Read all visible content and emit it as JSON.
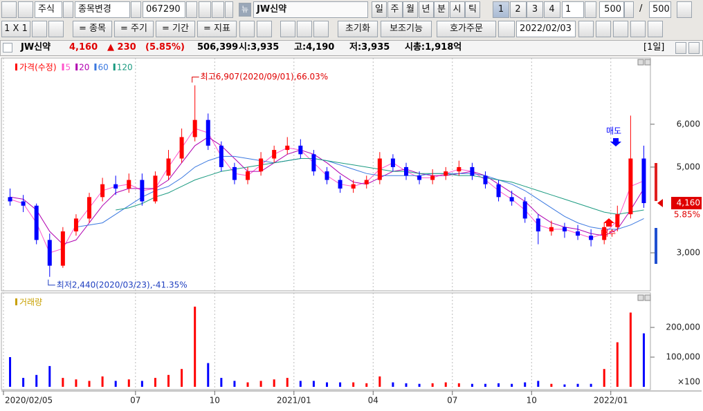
{
  "toolbar": {
    "row1": {
      "market": "주식",
      "change": "종목변경",
      "code": "067290",
      "new": "뉴",
      "name": "JW신약",
      "periods": [
        "일",
        "주",
        "월",
        "년",
        "분",
        "시",
        "틱"
      ],
      "counts": [
        "1",
        "2",
        "3",
        "4"
      ],
      "unit": "1",
      "view": "500",
      "sep": "/",
      "total": "500"
    },
    "row2": {
      "layout": "1 X 1",
      "buttons": [
        "= 종목",
        "= 주기",
        "= 기간",
        "= 지표"
      ],
      "reset": "초기화",
      "aux": "보조기능",
      "order": "호가주문",
      "date": "2022/02/03"
    }
  },
  "info": {
    "name": "JW신약",
    "price": "4,160",
    "change": "▲ 230",
    "pct": "(5.85%)",
    "volume": "506,399",
    "open": "시:3,935",
    "high": "고:4,190",
    "low": "저:3,935",
    "cap": "시총:1,918억",
    "period": "[1일]"
  },
  "chart_data": [
    {
      "type": "candlestick",
      "legend_title": "가격(수정)",
      "up_color": "#ff0000",
      "down_color": "#0000ff",
      "open": [
        4300,
        4200,
        4100,
        3300,
        2700,
        3500,
        3800,
        4300,
        4600,
        4500,
        4700,
        4200,
        4800,
        5200,
        5700,
        6100,
        5500,
        5000,
        4700,
        4900,
        5200,
        5400,
        5500,
        5300,
        4900,
        4700,
        4500,
        4600,
        4700,
        5200,
        5000,
        4800,
        4700,
        4800,
        4900,
        5000,
        4800,
        4600,
        4300,
        4200,
        3800,
        3500,
        3600,
        3500,
        3400,
        3300,
        3600,
        3900,
        5200
      ],
      "high": [
        4500,
        4350,
        4150,
        3450,
        3600,
        3900,
        4400,
        4750,
        4800,
        4850,
        4850,
        4900,
        5400,
        5900,
        6907,
        6250,
        5600,
        5100,
        5000,
        5350,
        5500,
        5700,
        5650,
        5400,
        5000,
        4800,
        4700,
        4800,
        5350,
        5300,
        5100,
        4900,
        4950,
        5000,
        5150,
        5100,
        4900,
        4700,
        4450,
        4300,
        3900,
        3750,
        3700,
        3650,
        3550,
        3700,
        4100,
        6200,
        5500
      ],
      "low": [
        4100,
        3950,
        3200,
        2440,
        2650,
        3400,
        3700,
        4200,
        4350,
        4400,
        4100,
        4150,
        4700,
        5100,
        5600,
        5400,
        4900,
        4600,
        4600,
        4800,
        5100,
        5300,
        5200,
        4800,
        4600,
        4400,
        4400,
        4500,
        4600,
        4900,
        4700,
        4600,
        4600,
        4700,
        4800,
        4700,
        4500,
        4200,
        4100,
        3700,
        3200,
        3400,
        3350,
        3300,
        3150,
        3200,
        3500,
        3800,
        4050
      ],
      "close": [
        4200,
        4100,
        3300,
        2700,
        3500,
        3800,
        4300,
        4600,
        4500,
        4700,
        4200,
        4800,
        5200,
        5700,
        6100,
        5500,
        5000,
        4700,
        4900,
        5200,
        5400,
        5500,
        5300,
        4900,
        4700,
        4500,
        4600,
        4700,
        5200,
        5000,
        4800,
        4700,
        4800,
        4900,
        5000,
        4800,
        4600,
        4300,
        4200,
        3800,
        3500,
        3600,
        3500,
        3400,
        3300,
        3600,
        3900,
        5200,
        4160
      ],
      "series": [
        {
          "name": "5",
          "color": "#ff55cc",
          "values": [
            4250,
            4150,
            3700,
            3000,
            3100,
            3650,
            4050,
            4450,
            4550,
            4600,
            4450,
            4500,
            5000,
            5450,
            5900,
            5800,
            5250,
            4850,
            4800,
            5050,
            5300,
            5450,
            5400,
            5100,
            4800,
            4600,
            4550,
            4650,
            4950,
            5100,
            4900,
            4750,
            4750,
            4850,
            4950,
            4900,
            4700,
            4450,
            4250,
            4000,
            3650,
            3550,
            3550,
            3450,
            3350,
            3450,
            3750,
            4550,
            4680
          ]
        },
        {
          "name": "20",
          "color": "#b000b0",
          "values": [
            4300,
            4250,
            4000,
            3500,
            3200,
            3300,
            3700,
            4100,
            4400,
            4500,
            4500,
            4500,
            4700,
            5100,
            5500,
            5700,
            5500,
            5200,
            4900,
            4900,
            5100,
            5300,
            5400,
            5300,
            5100,
            4850,
            4650,
            4600,
            4750,
            4900,
            4950,
            4850,
            4800,
            4800,
            4850,
            4900,
            4800,
            4600,
            4400,
            4200,
            3900,
            3700,
            3600,
            3550,
            3450,
            3400,
            3550,
            4000,
            4500
          ]
        },
        {
          "name": "60",
          "color": "#3a78e0",
          "values": [
            null,
            null,
            null,
            null,
            null,
            3600,
            3650,
            3700,
            3900,
            4100,
            4300,
            4450,
            4550,
            4750,
            5000,
            5150,
            5250,
            5250,
            5200,
            5150,
            5100,
            5150,
            5200,
            5200,
            5150,
            5050,
            4950,
            4850,
            4800,
            4800,
            4800,
            4800,
            4850,
            4850,
            4850,
            4850,
            4800,
            4700,
            4600,
            4450,
            4250,
            4050,
            3850,
            3700,
            3600,
            3550,
            3550,
            3650,
            3800
          ]
        },
        {
          "name": "120",
          "color": "#1a9a80",
          "values": [
            null,
            null,
            null,
            null,
            null,
            null,
            null,
            null,
            4000,
            4050,
            4150,
            4300,
            4400,
            4550,
            4700,
            4800,
            4900,
            4950,
            5000,
            5050,
            5100,
            5150,
            5200,
            5200,
            5150,
            5100,
            5050,
            5000,
            4950,
            4900,
            4900,
            4850,
            4850,
            4850,
            4800,
            4800,
            4750,
            4700,
            4650,
            4550,
            4450,
            4350,
            4250,
            4150,
            4050,
            3950,
            3900,
            3950,
            4000
          ]
        }
      ],
      "ylim": [
        2130,
        7480
      ],
      "yticks": [
        {
          "value": 3000,
          "label": "3,000"
        },
        {
          "value": 5000,
          "label": "5,000"
        },
        {
          "value": 6000,
          "label": "6,000"
        }
      ],
      "last_label": "4,160",
      "last_pct": "5.85%",
      "high_note": "최고6,907(2020/09/01),66.03%",
      "low_note": "최저2,440(2020/03/23),-41.35%",
      "signals": [
        {
          "text": "매도",
          "color": "#0000ff"
        },
        {
          "text": "매수",
          "color": "#ff0000"
        }
      ]
    },
    {
      "type": "bar",
      "legend_title": "거래량",
      "unit": "×100",
      "categories": [
        "2020/02/05",
        null,
        null,
        null,
        null,
        null,
        null,
        null,
        null,
        null,
        "07",
        null,
        null,
        null,
        null,
        null,
        "10",
        null,
        null,
        null,
        null,
        null,
        "2021/01",
        null,
        null,
        null,
        null,
        null,
        "04",
        null,
        null,
        null,
        null,
        null,
        "07",
        null,
        null,
        null,
        null,
        null,
        "10",
        null,
        null,
        null,
        null,
        null,
        "2022/01",
        null,
        null
      ],
      "values": [
        100000,
        30000,
        40000,
        70000,
        30000,
        25000,
        20000,
        35000,
        20000,
        25000,
        20000,
        30000,
        40000,
        60000,
        270000,
        80000,
        30000,
        20000,
        15000,
        20000,
        25000,
        30000,
        20000,
        20000,
        15000,
        15000,
        15000,
        12000,
        35000,
        15000,
        12000,
        10000,
        12000,
        15000,
        12000,
        10000,
        10000,
        12000,
        10000,
        15000,
        20000,
        10000,
        8000,
        10000,
        10000,
        60000,
        150000,
        250000,
        180000
      ],
      "ylim": [
        0,
        307000
      ],
      "yticks": [
        {
          "value": 100000,
          "label": "100,000"
        },
        {
          "value": 200000,
          "label": "200,000"
        }
      ]
    }
  ]
}
